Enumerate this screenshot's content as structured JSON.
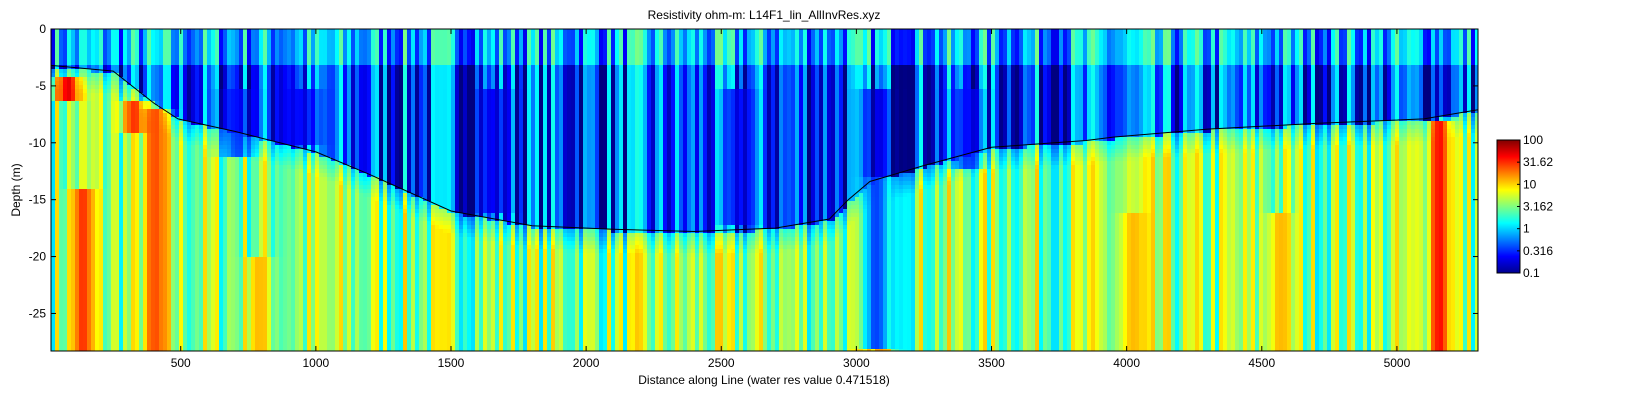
{
  "chart_data": {
    "type": "heatmap",
    "title": "Resistivity ohm-m: L14F1_lin_AllInvRes.xyz",
    "xlabel": "Distance along Line (water res value 0.471518)",
    "ylabel": "Depth (m)",
    "xlim": [
      20,
      5300
    ],
    "ylim": [
      -28.3,
      0
    ],
    "xticks": [
      500,
      1000,
      1500,
      2000,
      2500,
      3000,
      3500,
      4000,
      4500,
      5000
    ],
    "yticks": [
      0,
      -5,
      -10,
      -15,
      -20,
      -25
    ],
    "xtick_labels": [
      "500",
      "1000",
      "1500",
      "2000",
      "2500",
      "3000",
      "3500",
      "4000",
      "4500",
      "5000"
    ],
    "ytick_labels": [
      "0",
      "-5",
      "-10",
      "-15",
      "-20",
      "-25"
    ],
    "grid": false,
    "colorscale": {
      "scale": "log",
      "range": [
        0.1,
        100
      ],
      "colormap": "jet",
      "ticks": [
        100,
        31.62,
        10,
        3.162,
        1,
        0.316,
        0.1
      ],
      "tick_labels": [
        "100",
        "31.62",
        "10",
        "3.162",
        "1",
        "0.316",
        "0.1"
      ]
    },
    "layers": [
      {
        "name_hidden": true,
        "depth_range": [
          0,
          -3
        ],
        "typical_res": 0.8
      },
      {
        "name_hidden": true,
        "description_hidden": true,
        "depth_range": [
          -3,
          -17
        ],
        "typical_res": 0.35
      },
      {
        "name_hidden": true,
        "depth_range": [
          -17,
          -28.3
        ],
        "typical_res": 3.5
      }
    ],
    "hot_spots": [
      {
        "x": 130,
        "depth_range": [
          -14,
          -28.3
        ],
        "res": 30
      },
      {
        "x": 400,
        "depth_range": [
          -7,
          -28.3
        ],
        "res": 25
      },
      {
        "x": 320,
        "depth_range": [
          -6,
          -9
        ],
        "res": 30
      },
      {
        "x": 75,
        "depth_range": [
          -4,
          -6
        ],
        "res": 50
      },
      {
        "x": 780,
        "depth_range": [
          -20,
          -28.3
        ],
        "res": 12
      },
      {
        "x": 3080,
        "depth_range": [
          -13,
          -28.3
        ],
        "res": 15
      },
      {
        "x": 4020,
        "depth_range": [
          -16,
          -28.3
        ],
        "res": 12
      },
      {
        "x": 4560,
        "depth_range": [
          -16,
          -28.3
        ],
        "res": 12
      },
      {
        "x": 5150,
        "depth_range": [
          -8,
          -28.3
        ],
        "res": 40
      }
    ],
    "cold_spots": [
      {
        "x": 700,
        "depth_range": [
          -5,
          -11
        ],
        "res": 0.25
      },
      {
        "x": 950,
        "depth_range": [
          -5,
          -10
        ],
        "res": 0.2
      },
      {
        "x": 1650,
        "depth_range": [
          -5,
          -16
        ],
        "res": 0.18
      },
      {
        "x": 2550,
        "depth_range": [
          -5,
          -17
        ],
        "res": 0.2
      },
      {
        "x": 3070,
        "depth_range": [
          -5,
          -28
        ],
        "res": 0.15
      },
      {
        "x": 3400,
        "depth_range": [
          -5,
          -12
        ],
        "res": 0.25
      }
    ],
    "series": [
      {
        "type": "line",
        "color": "#000000",
        "x": [
          20,
          250,
          400,
          490,
          700,
          1000,
          1200,
          1500,
          1800,
          2100,
          2400,
          2700,
          2900,
          2970,
          3050,
          3250,
          3500,
          3850,
          3950,
          4300,
          4700,
          5100,
          5300
        ],
        "y": [
          -3.2,
          -3.7,
          -6.5,
          -7.9,
          -9.0,
          -10.8,
          -12.8,
          -16.0,
          -17.3,
          -17.6,
          -17.8,
          -17.5,
          -16.7,
          -15.0,
          -13.4,
          -12.0,
          -10.4,
          -9.8,
          -9.5,
          -8.8,
          -8.3,
          -7.9,
          -7.1
        ]
      }
    ]
  }
}
